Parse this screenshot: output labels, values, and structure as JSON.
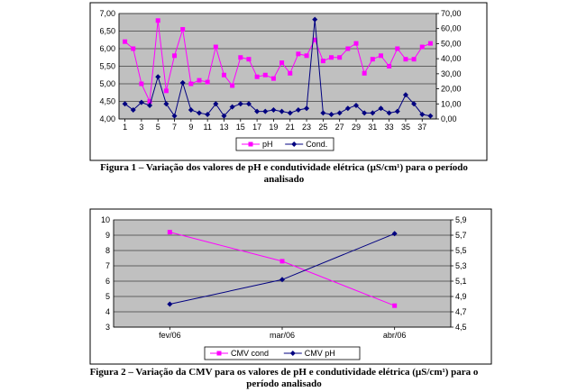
{
  "chart_data": [
    {
      "type": "line",
      "x": [
        1,
        2,
        3,
        4,
        5,
        6,
        7,
        8,
        9,
        10,
        11,
        12,
        13,
        14,
        15,
        16,
        17,
        18,
        19,
        20,
        21,
        22,
        23,
        24,
        25,
        26,
        27,
        28,
        29,
        30,
        31,
        32,
        33,
        34,
        35,
        36,
        37,
        38
      ],
      "x_tick_labels": [
        "1",
        "3",
        "5",
        "7",
        "9",
        "11",
        "13",
        "15",
        "17",
        "19",
        "21",
        "23",
        "25",
        "27",
        "29",
        "31",
        "33",
        "35",
        "37"
      ],
      "y_tick_labels": [
        "4,00",
        "4,50",
        "5,00",
        "5,50",
        "6,00",
        "6,50",
        "7,00"
      ],
      "y2_tick_labels": [
        "0,00",
        "10,00",
        "20,00",
        "30,00",
        "40,00",
        "50,00",
        "60,00",
        "70,00"
      ],
      "ylim": [
        4.0,
        7.0
      ],
      "y2lim": [
        0,
        70
      ],
      "series": [
        {
          "name": "pH",
          "axis": "left",
          "color": "#ff00ff",
          "marker": "square",
          "values": [
            6.2,
            6.0,
            5.0,
            4.5,
            6.8,
            4.8,
            5.8,
            6.55,
            5.0,
            5.1,
            5.05,
            6.05,
            5.25,
            4.95,
            5.75,
            5.7,
            5.2,
            5.25,
            5.15,
            5.6,
            5.3,
            5.85,
            5.8,
            6.25,
            5.65,
            5.75,
            5.75,
            6.0,
            6.15,
            5.3,
            5.7,
            5.8,
            5.5,
            6.0,
            5.7,
            5.7,
            6.05,
            6.15
          ]
        },
        {
          "name": "Cond.",
          "axis": "right",
          "color": "#000080",
          "marker": "diamond",
          "values": [
            10,
            6,
            11,
            9,
            28,
            10,
            2,
            24,
            6,
            4,
            3,
            10,
            2,
            8,
            10,
            10,
            5,
            5,
            6,
            5,
            4,
            6,
            7,
            66,
            4,
            3,
            4,
            7,
            9,
            4,
            4,
            7,
            4,
            5,
            16,
            10,
            3,
            2
          ]
        }
      ],
      "legend": "bottom-center"
    },
    {
      "type": "line",
      "categories": [
        "fev/06",
        "mar/06",
        "abr/06"
      ],
      "y_tick_labels": [
        "3",
        "4",
        "5",
        "6",
        "7",
        "8",
        "9",
        "10"
      ],
      "y2_tick_labels": [
        "4,5",
        "4,7",
        "4,9",
        "5,1",
        "5,3",
        "5,5",
        "5,7",
        "5,9"
      ],
      "ylim": [
        3,
        10
      ],
      "y2lim": [
        4.5,
        5.9
      ],
      "series": [
        {
          "name": "CMV cond",
          "axis": "left",
          "color": "#ff00ff",
          "marker": "square",
          "values": [
            9.2,
            7.3,
            4.4
          ]
        },
        {
          "name": "CMV pH",
          "axis": "right",
          "color": "#000080",
          "marker": "diamond",
          "values": [
            4.8,
            5.12,
            5.72
          ]
        }
      ],
      "legend": "bottom-center"
    }
  ],
  "captions": {
    "fig1_line1": "Figura 1 – Variação dos valores de pH e condutividade elétrica (µS/cm¹) para o período",
    "fig1_line2": "analisado",
    "fig2_line1": "Figura 2 – Variação da CMV para os valores de pH e condutividade elétrica (µS/cm¹) para o",
    "fig2_line2": "período analisado"
  },
  "colors": {
    "plot_area": "#c0c0c0",
    "frame": "#000000",
    "gridline": "#000000"
  }
}
